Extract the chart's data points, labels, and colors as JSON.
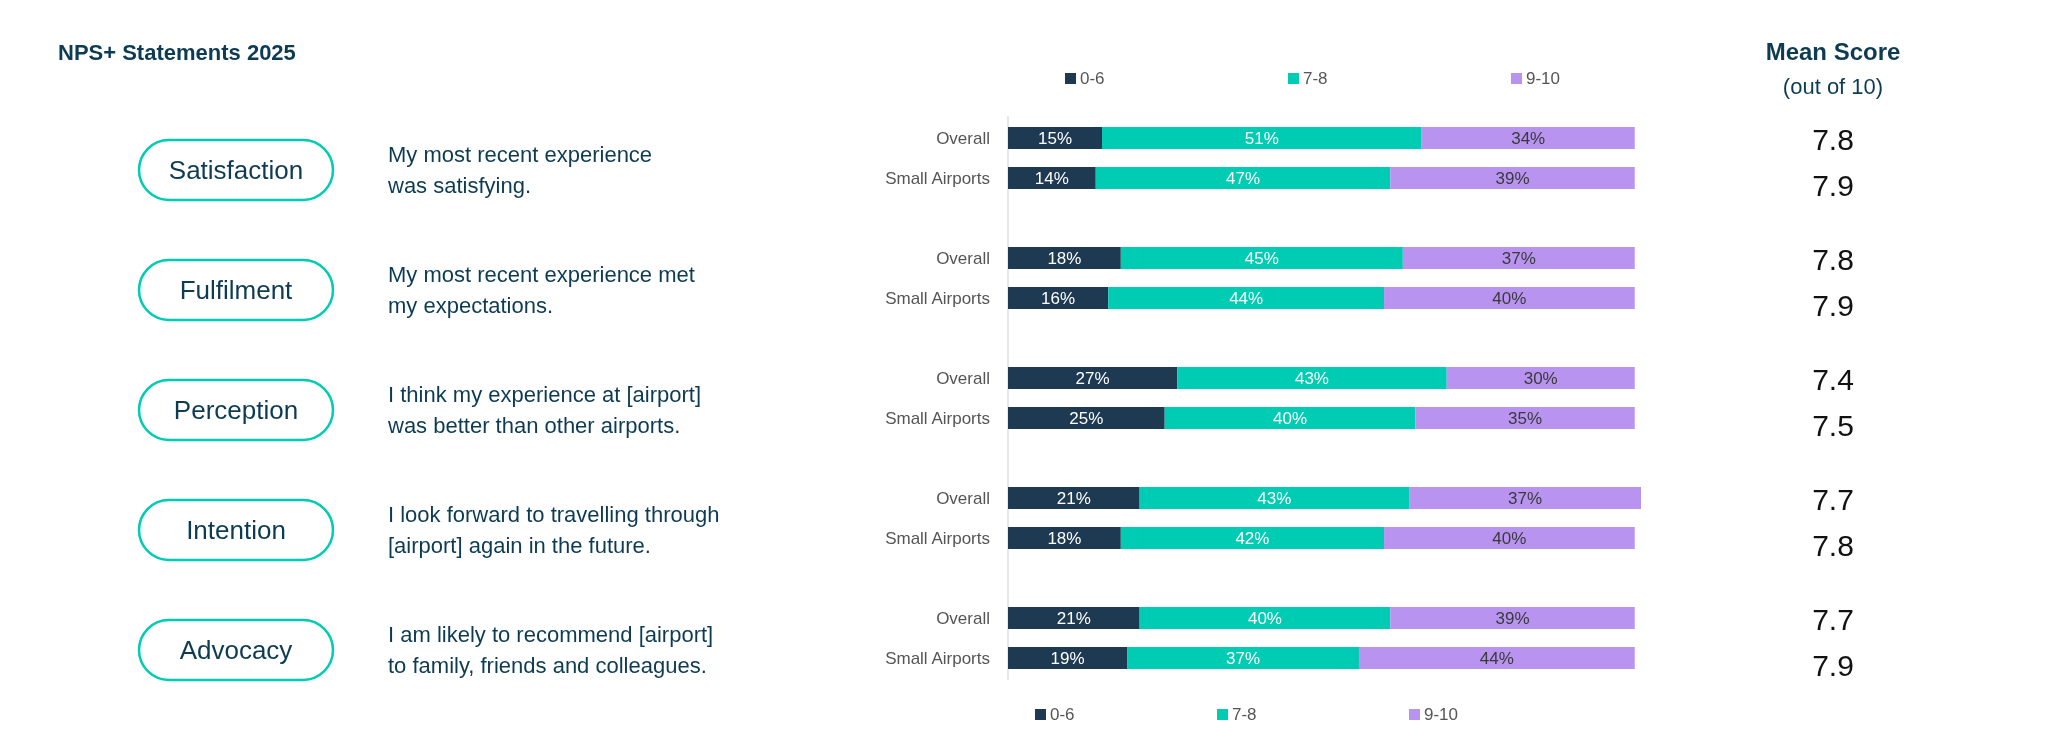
{
  "chart_data": {
    "type": "bar",
    "orientation": "horizontal",
    "stacked": true,
    "title": "NPS+ Statements 2025",
    "legend": "bottom",
    "xlim": [
      0,
      101
    ],
    "categories": [
      "Overall",
      "Small Airports",
      "Overall",
      "Small Airports",
      "Overall",
      "Small Airports",
      "Overall",
      "Small Airports",
      "Overall",
      "Small Airports"
    ],
    "series": [
      {
        "name": "0-6",
        "color": "#1d3a52",
        "values": [
          15,
          14,
          18,
          16,
          27,
          25,
          21,
          18,
          21,
          19
        ],
        "value_labels": [
          "15%",
          "14%",
          "18%",
          "16%",
          "27%",
          "25%",
          "21%",
          "18%",
          "21%",
          "19%"
        ]
      },
      {
        "name": "7-8",
        "color": "#00cbb3",
        "values": [
          51,
          47,
          45,
          44,
          43,
          40,
          43,
          42,
          40,
          37
        ],
        "value_labels": [
          "51%",
          "47%",
          "45%",
          "44%",
          "43%",
          "40%",
          "43%",
          "42%",
          "40%",
          "37%"
        ]
      },
      {
        "name": "9-10",
        "color": "#b893f0",
        "values": [
          34,
          39,
          37,
          40,
          30,
          35,
          37,
          40,
          39,
          44
        ],
        "value_labels": [
          "34%",
          "39%",
          "37%",
          "40%",
          "30%",
          "35%",
          "37%",
          "40%",
          "39%",
          "44%"
        ]
      }
    ],
    "annotations": [
      "Mean Score",
      "(out of 10)",
      "Satisfaction",
      "My most recent experience\nwas satisfying.",
      "7.8",
      "7.9",
      "Fulfilment",
      "My most recent experience met\nmy expectations.",
      "7.8",
      "7.9",
      "Perception",
      "I think my experience at [airport]\nwas better than other airports.",
      "7.4",
      "7.5",
      "Intention",
      "I look forward to travelling through\n[airport] again in the future.",
      "7.7",
      "7.8",
      "Advocacy",
      "I am likely to recommend [airport]\nto family, friends and colleagues.",
      "7.7",
      "7.9"
    ]
  }
}
